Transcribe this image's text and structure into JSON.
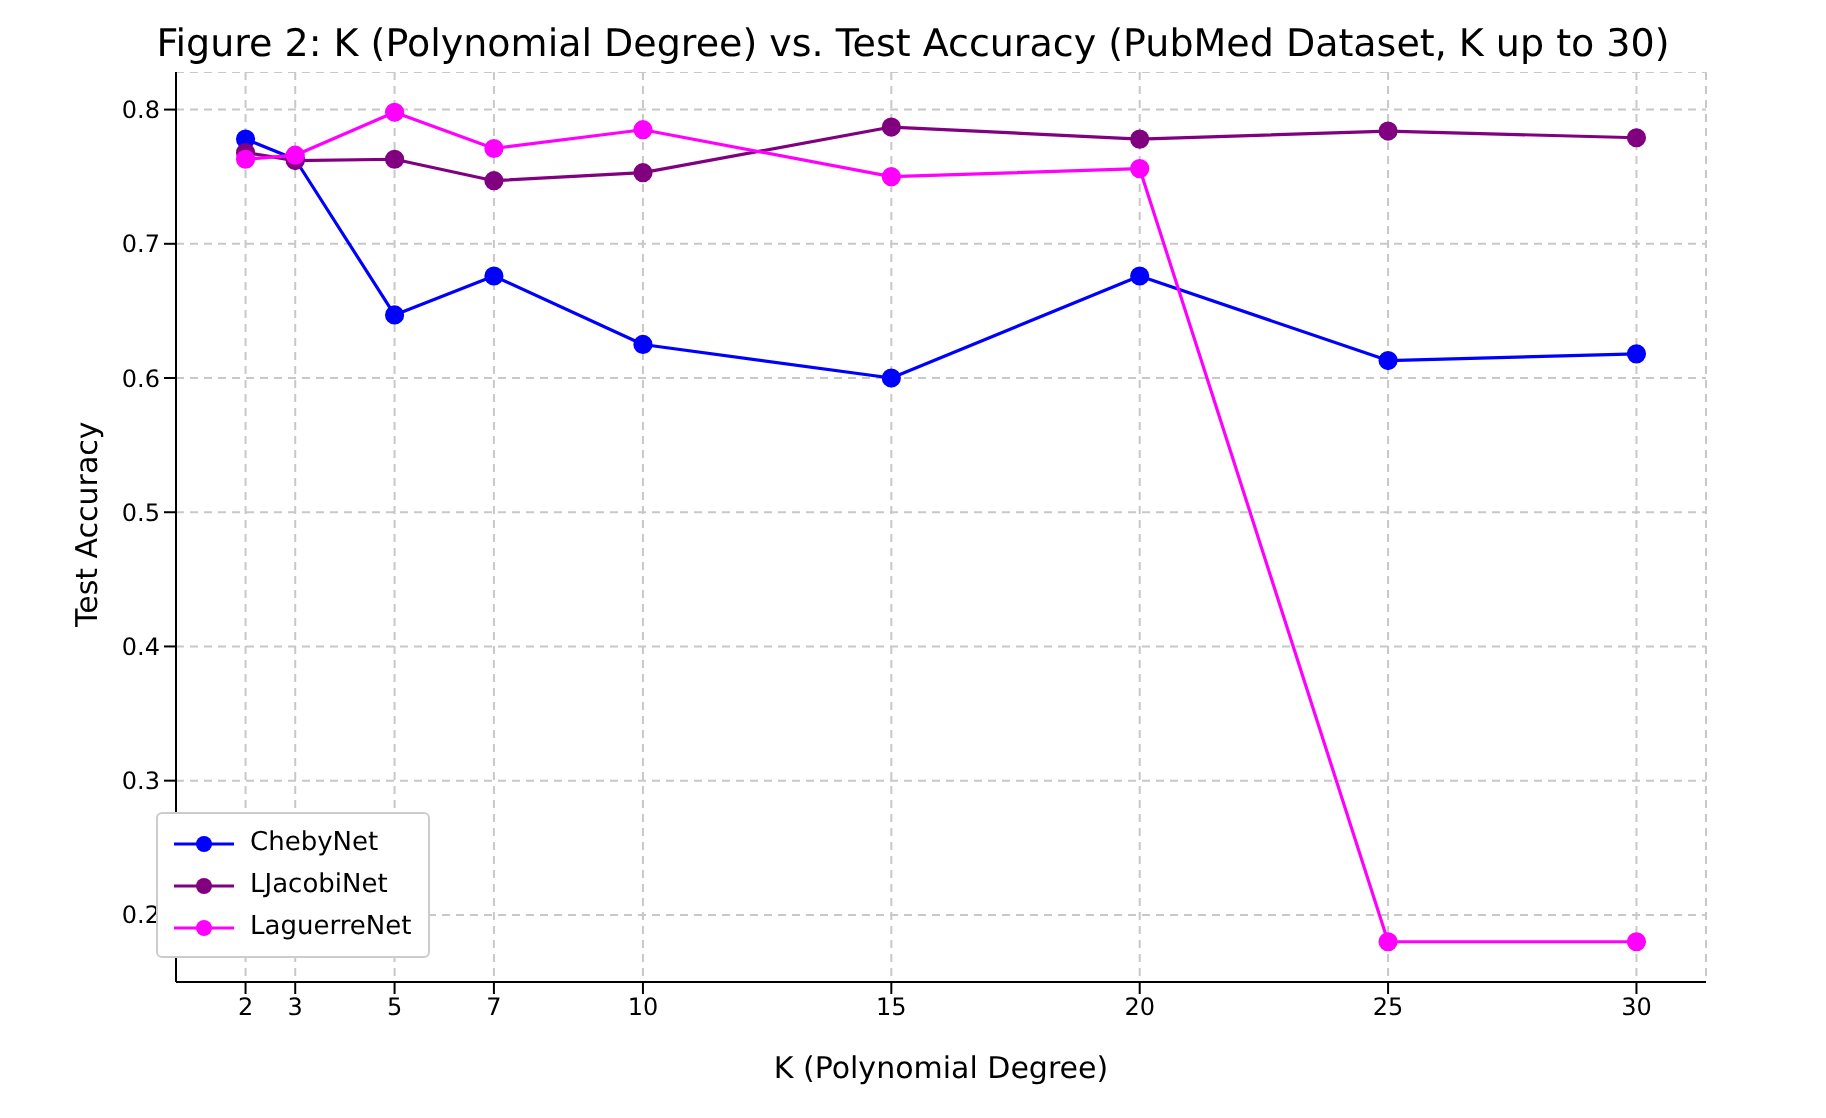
{
  "chart_data": {
    "type": "line",
    "title": "Figure 2: K (Polynomial Degree) vs. Test Accuracy (PubMed Dataset, K up to 30)",
    "xlabel": "K (Polynomial Degree)",
    "ylabel": "Test Accuracy",
    "x": [
      2,
      3,
      5,
      7,
      10,
      15,
      20,
      25,
      30
    ],
    "series": [
      {
        "name": "ChebyNet",
        "color": "#0000ff",
        "values": [
          0.778,
          0.763,
          0.647,
          0.676,
          0.625,
          0.6,
          0.676,
          0.613,
          0.618
        ]
      },
      {
        "name": "LJacobiNet",
        "color": "#800080",
        "values": [
          0.768,
          0.762,
          0.763,
          0.747,
          0.753,
          0.787,
          0.778,
          0.784,
          0.779
        ]
      },
      {
        "name": "LaguerreNet",
        "color": "#ff00ff",
        "values": [
          0.763,
          0.766,
          0.798,
          0.771,
          0.785,
          0.75,
          0.756,
          0.18,
          0.18
        ]
      }
    ],
    "xlim": [
      0.6,
      31.4
    ],
    "ylim": [
      0.15,
      0.828
    ],
    "xticks": [
      2,
      3,
      5,
      7,
      10,
      15,
      20,
      25,
      30
    ],
    "yticks": [
      0.2,
      0.3,
      0.4,
      0.5,
      0.6,
      0.7,
      0.8
    ],
    "grid": true,
    "legend": "bottom left",
    "marker": "circle",
    "line_style": "solid"
  }
}
